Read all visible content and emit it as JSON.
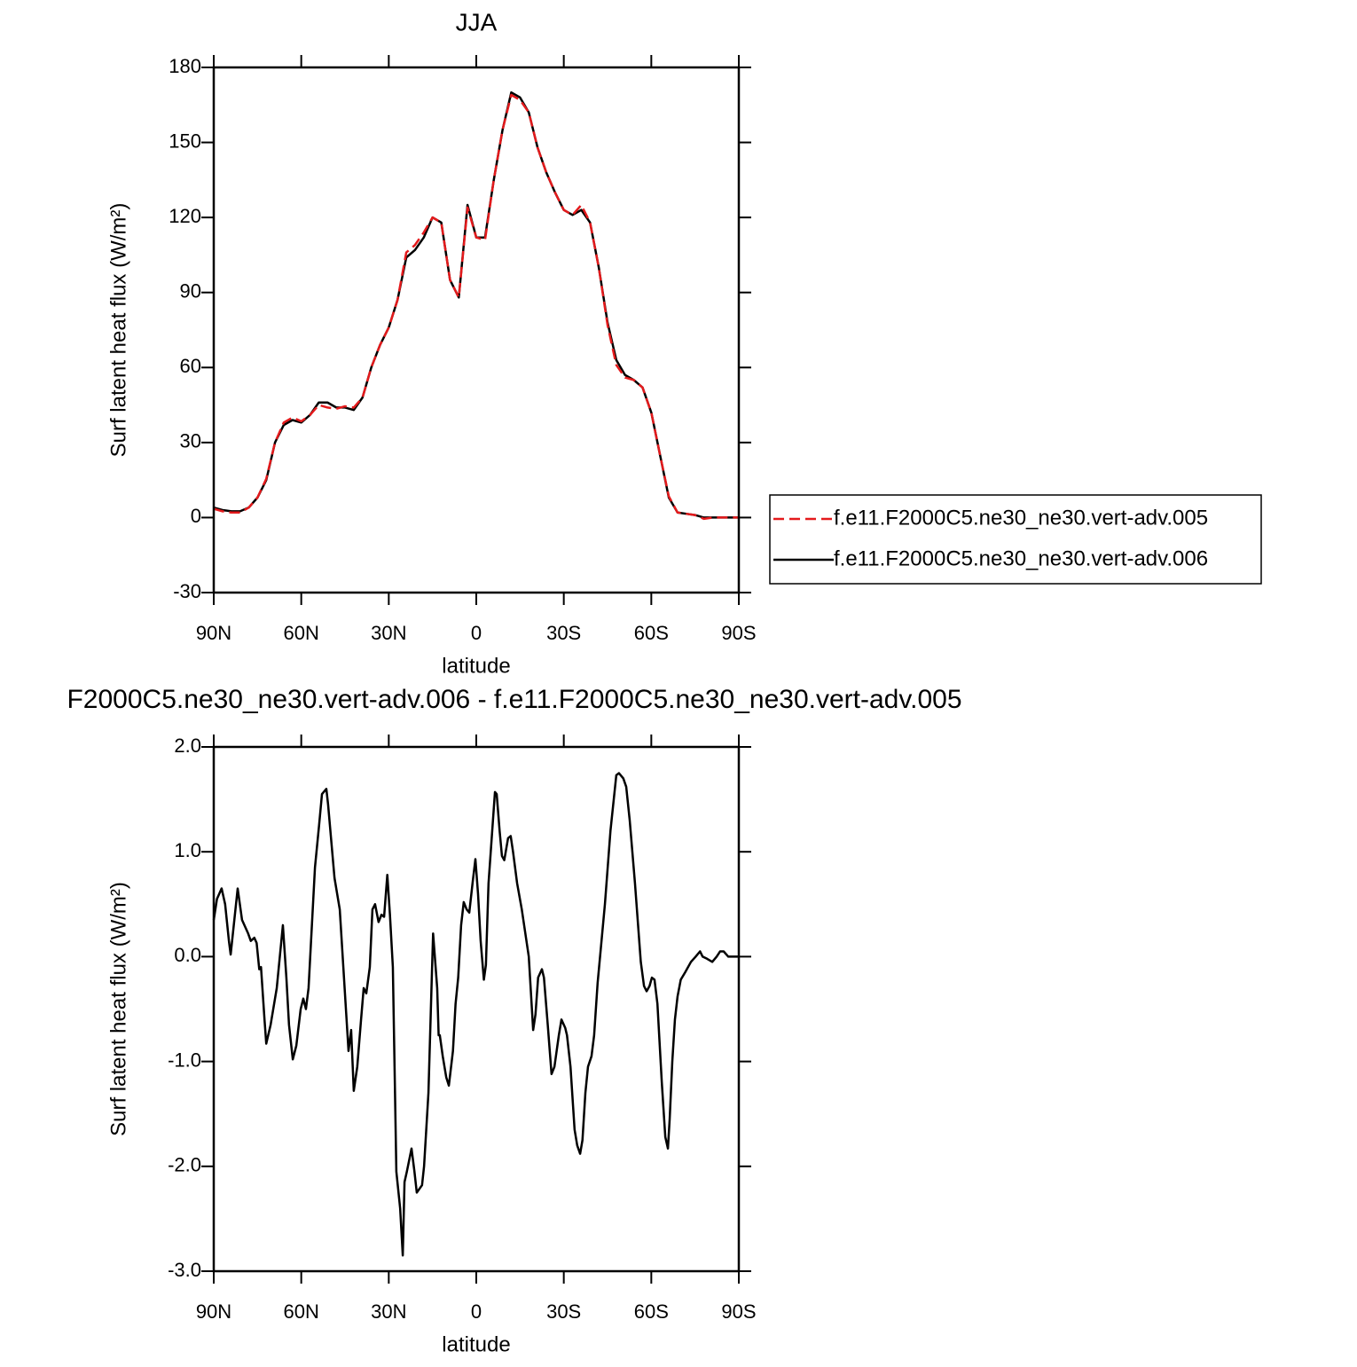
{
  "chart_data": [
    {
      "type": "line",
      "title": "JJA",
      "xlabel": "latitude",
      "ylabel": "Surf latent heat flux (W/m²)",
      "xlim": [
        90,
        -90
      ],
      "xticks": [
        {
          "value": 90,
          "label": "90N"
        },
        {
          "value": 60,
          "label": "60N"
        },
        {
          "value": 30,
          "label": "30N"
        },
        0,
        {
          "value": -30,
          "label": "30S"
        },
        {
          "value": -60,
          "label": "60S"
        },
        {
          "value": -90,
          "label": "90S"
        }
      ],
      "ylim": [
        -30,
        180
      ],
      "yticks": [
        -30,
        0,
        30,
        60,
        90,
        120,
        150,
        180
      ],
      "legend": "right",
      "x": [
        90,
        87,
        84,
        81,
        78,
        75,
        72,
        69,
        66,
        63,
        60,
        57,
        54,
        51,
        48,
        45,
        42,
        39,
        36,
        33,
        30,
        27,
        24,
        21,
        18,
        15,
        12,
        9,
        6,
        3,
        0,
        -3,
        -6,
        -9,
        -12,
        -15,
        -18,
        -21,
        -24,
        -27,
        -30,
        -33,
        -36,
        -39,
        -42,
        -45,
        -48,
        -51,
        -54,
        -57,
        -60,
        -63,
        -66,
        -69,
        -72,
        -75,
        -78,
        -81,
        -84,
        -87,
        -90
      ],
      "series": [
        {
          "name": "f.e11.F2000C5.ne30_ne30.vert-adv.005",
          "color": "#e41a1c",
          "linestyle": "dashed",
          "values": [
            3.5,
            2.5,
            2,
            2,
            4,
            8,
            15.5,
            30,
            38,
            40,
            38.5,
            41,
            45,
            44,
            43.5,
            44.5,
            44,
            48,
            60,
            69,
            76,
            87,
            106,
            109,
            114,
            120,
            118,
            95,
            88,
            124,
            112,
            111,
            135,
            155,
            169,
            167,
            162,
            148,
            138,
            130,
            123,
            121,
            125,
            118,
            100,
            77,
            61,
            56,
            55,
            52,
            42,
            25,
            8.5,
            2,
            1.5,
            1,
            -0.5,
            0,
            0,
            0,
            0
          ]
        },
        {
          "name": "f.e11.F2000C5.ne30_ne30.vert-adv.006",
          "color": "#000000",
          "linestyle": "solid",
          "values": [
            4,
            3,
            2.5,
            2.5,
            4,
            8,
            15,
            30,
            37,
            39,
            38,
            41,
            46,
            46,
            44,
            44,
            43,
            48,
            60,
            69,
            76,
            87,
            104,
            107,
            112,
            120,
            118,
            95,
            88,
            125,
            112,
            112,
            135,
            155,
            170,
            168,
            162,
            148,
            138,
            130,
            123,
            121,
            123,
            118,
            100,
            78,
            63,
            57,
            55,
            52,
            42,
            25,
            8,
            2,
            1.5,
            1,
            0,
            0,
            0,
            0,
            0
          ]
        }
      ]
    },
    {
      "type": "line",
      "title": "F2000C5.ne30_ne30.vert-adv.006 - f.e11.F2000C5.ne30_ne30.vert-adv.005",
      "xlabel": "latitude",
      "ylabel": "Surf latent heat flux (W/m²)",
      "xlim": [
        90,
        -90
      ],
      "xticks": [
        {
          "value": 90,
          "label": "90N"
        },
        {
          "value": 60,
          "label": "60N"
        },
        {
          "value": 30,
          "label": "30N"
        },
        0,
        {
          "value": -30,
          "label": "30S"
        },
        {
          "value": -60,
          "label": "60S"
        },
        {
          "value": -90,
          "label": "90S"
        }
      ],
      "ylim": [
        -3,
        2
      ],
      "yticks": [
        {
          "value": -3,
          "label": "-3.0"
        },
        {
          "value": -2,
          "label": "-2.0"
        },
        {
          "value": -1,
          "label": "-1.0"
        },
        {
          "value": 0,
          "label": "0.0"
        },
        {
          "value": 1,
          "label": "1.0"
        },
        {
          "value": 2,
          "label": "2.0"
        }
      ],
      "color": "#000000",
      "x": [
        90,
        88.9,
        87.3,
        86.1,
        84.8,
        84.2,
        81.8,
        80.3,
        78.2,
        77.3,
        76.1,
        75.3,
        74.4,
        73.8,
        72.6,
        72,
        70.5,
        68.4,
        66.3,
        65.1,
        64.2,
        62.9,
        61.7,
        60.2,
        59.3,
        58.4,
        57.5,
        55.3,
        53.9,
        52.9,
        51.4,
        50.8,
        48.6,
        46.8,
        43.8,
        42.9,
        42,
        40.8,
        39.5,
        38.6,
        37.7,
        36.5,
        35.6,
        34.7,
        33.5,
        32.5,
        31.6,
        30.5,
        29.6,
        28.6,
        27.4,
        26.1,
        25.2,
        24.6,
        23.8,
        22.2,
        21.2,
        20.4,
        18.6,
        17.9,
        16.4,
        15.2,
        14.8,
        13.4,
        12.9,
        12.5,
        11.5,
        10.3,
        9.4,
        8,
        7.1,
        6.2,
        5.2,
        4.3,
        3.3,
        2.4,
        1.2,
        0.3,
        -0.6,
        -1.5,
        -2.6,
        -3.3,
        -4.2,
        -6.4,
        -7,
        -8,
        -8.8,
        -9.6,
        -10.9,
        -11.8,
        -12.6,
        -14,
        -15.6,
        -18,
        -19.5,
        -20.3,
        -21.2,
        -22.5,
        -23.2,
        -24.5,
        -25.8,
        -26.8,
        -28.3,
        -29.2,
        -30.5,
        -31.1,
        -32.3,
        -33.7,
        -34.6,
        -35.6,
        -36.4,
        -37.4,
        -38.3,
        -39.5,
        -40.4,
        -41.6,
        -44.1,
        -46,
        -48,
        -48.9,
        -50.4,
        -51.4,
        -52.6,
        -54.4,
        -56.4,
        -57.5,
        -58.4,
        -59.4,
        -60.2,
        -61.1,
        -62.1,
        -63.6,
        -64.8,
        -65.7,
        -66.3,
        -67.2,
        -68.1,
        -69,
        -70.1,
        -71.6,
        -73.6,
        -75.2,
        -76.7,
        -77.6,
        -79.1,
        -80.9,
        -82.4,
        -83.6,
        -84.8,
        -86.4,
        -88.5,
        -90
      ],
      "values": [
        0.35,
        0.55,
        0.65,
        0.5,
        0.15,
        0.02,
        0.65,
        0.35,
        0.22,
        0.15,
        0.18,
        0.13,
        -0.12,
        -0.1,
        -0.6,
        -0.83,
        -0.65,
        -0.3,
        0.3,
        -0.2,
        -0.65,
        -0.98,
        -0.85,
        -0.5,
        -0.4,
        -0.5,
        -0.3,
        0.85,
        1.25,
        1.55,
        1.6,
        1.45,
        0.75,
        0.45,
        -0.9,
        -0.7,
        -1.28,
        -1.05,
        -0.6,
        -0.3,
        -0.35,
        -0.1,
        0.45,
        0.5,
        0.33,
        0.4,
        0.38,
        0.78,
        0.4,
        -0.1,
        -2.05,
        -2.4,
        -2.85,
        -2.15,
        -2.05,
        -1.83,
        -2.05,
        -2.25,
        -2.18,
        -2,
        -1.3,
        -0.15,
        0.22,
        -0.3,
        -0.75,
        -0.75,
        -0.95,
        -1.15,
        -1.23,
        -0.9,
        -0.45,
        -0.2,
        0.3,
        0.52,
        0.45,
        0.42,
        0.72,
        0.93,
        0.6,
        0.15,
        -0.22,
        -0.08,
        0.7,
        1.57,
        1.55,
        1.2,
        0.96,
        0.92,
        1.13,
        1.15,
        1,
        0.7,
        0.45,
        0,
        -0.7,
        -0.55,
        -0.2,
        -0.12,
        -0.2,
        -0.65,
        -1.12,
        -1.05,
        -0.75,
        -0.6,
        -0.68,
        -0.75,
        -1.05,
        -1.65,
        -1.8,
        -1.88,
        -1.75,
        -1.3,
        -1.05,
        -0.95,
        -0.75,
        -0.25,
        0.5,
        1.2,
        1.73,
        1.75,
        1.7,
        1.62,
        1.3,
        0.7,
        -0.05,
        -0.28,
        -0.33,
        -0.28,
        -0.2,
        -0.22,
        -0.45,
        -1.2,
        -1.72,
        -1.83,
        -1.55,
        -1,
        -0.6,
        -0.38,
        -0.22,
        -0.15,
        -0.05,
        0,
        0.05,
        0,
        -0.02,
        -0.05,
        0,
        0.05,
        0.05,
        0,
        0,
        0
      ]
    }
  ]
}
